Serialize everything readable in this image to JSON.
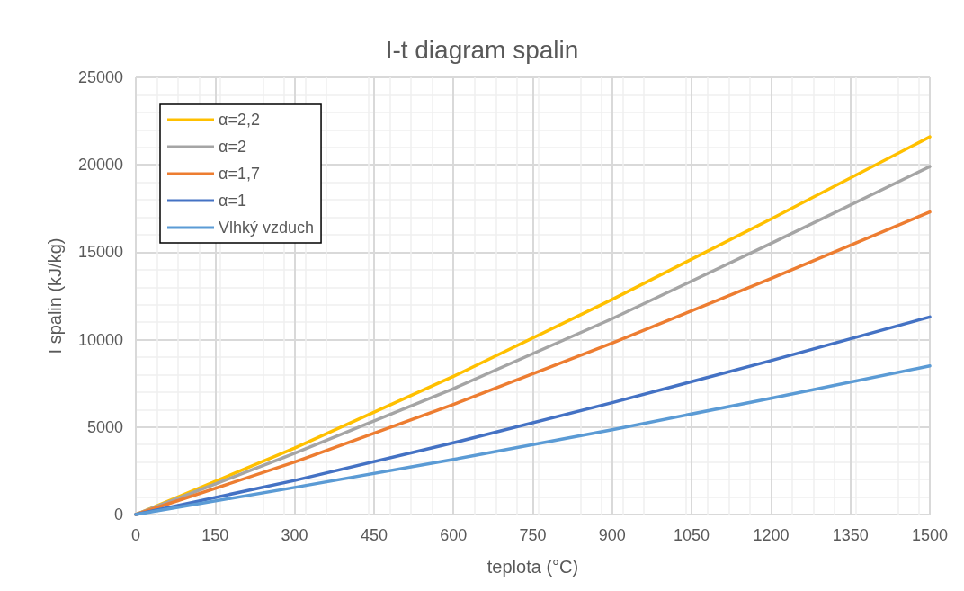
{
  "chart_data": {
    "type": "line",
    "title": "I-t diagram spalin",
    "xlabel": "teplota (°C)",
    "ylabel": "I spalin (kJ/kg)",
    "x": [
      0,
      300,
      600,
      900,
      1200,
      1500
    ],
    "series": [
      {
        "name": "α=2,2",
        "color": "#ffc000",
        "values": [
          0,
          3800,
          7900,
          12300,
          16900,
          21600
        ]
      },
      {
        "name": "α=2",
        "color": "#a5a5a5",
        "values": [
          0,
          3500,
          7200,
          11200,
          15500,
          19900
        ]
      },
      {
        "name": "α=1,7",
        "color": "#ed7d31",
        "values": [
          0,
          3000,
          6300,
          9800,
          13500,
          17300
        ]
      },
      {
        "name": "α=1",
        "color": "#4472c4",
        "values": [
          0,
          1950,
          4100,
          6400,
          8800,
          11300
        ]
      },
      {
        "name": "Vlhký vzduch",
        "color": "#5b9bd5",
        "values": [
          0,
          1550,
          3150,
          4850,
          6650,
          8500
        ]
      }
    ],
    "xlim": [
      0,
      1500
    ],
    "xticks": [
      0,
      150,
      300,
      450,
      600,
      750,
      900,
      1050,
      1200,
      1350,
      1500
    ],
    "ylim": [
      0,
      25000
    ],
    "yticks": [
      0,
      5000,
      10000,
      15000,
      20000,
      25000
    ],
    "grid": true,
    "legend": "top left",
    "marker": "none",
    "line_style": "solid"
  }
}
